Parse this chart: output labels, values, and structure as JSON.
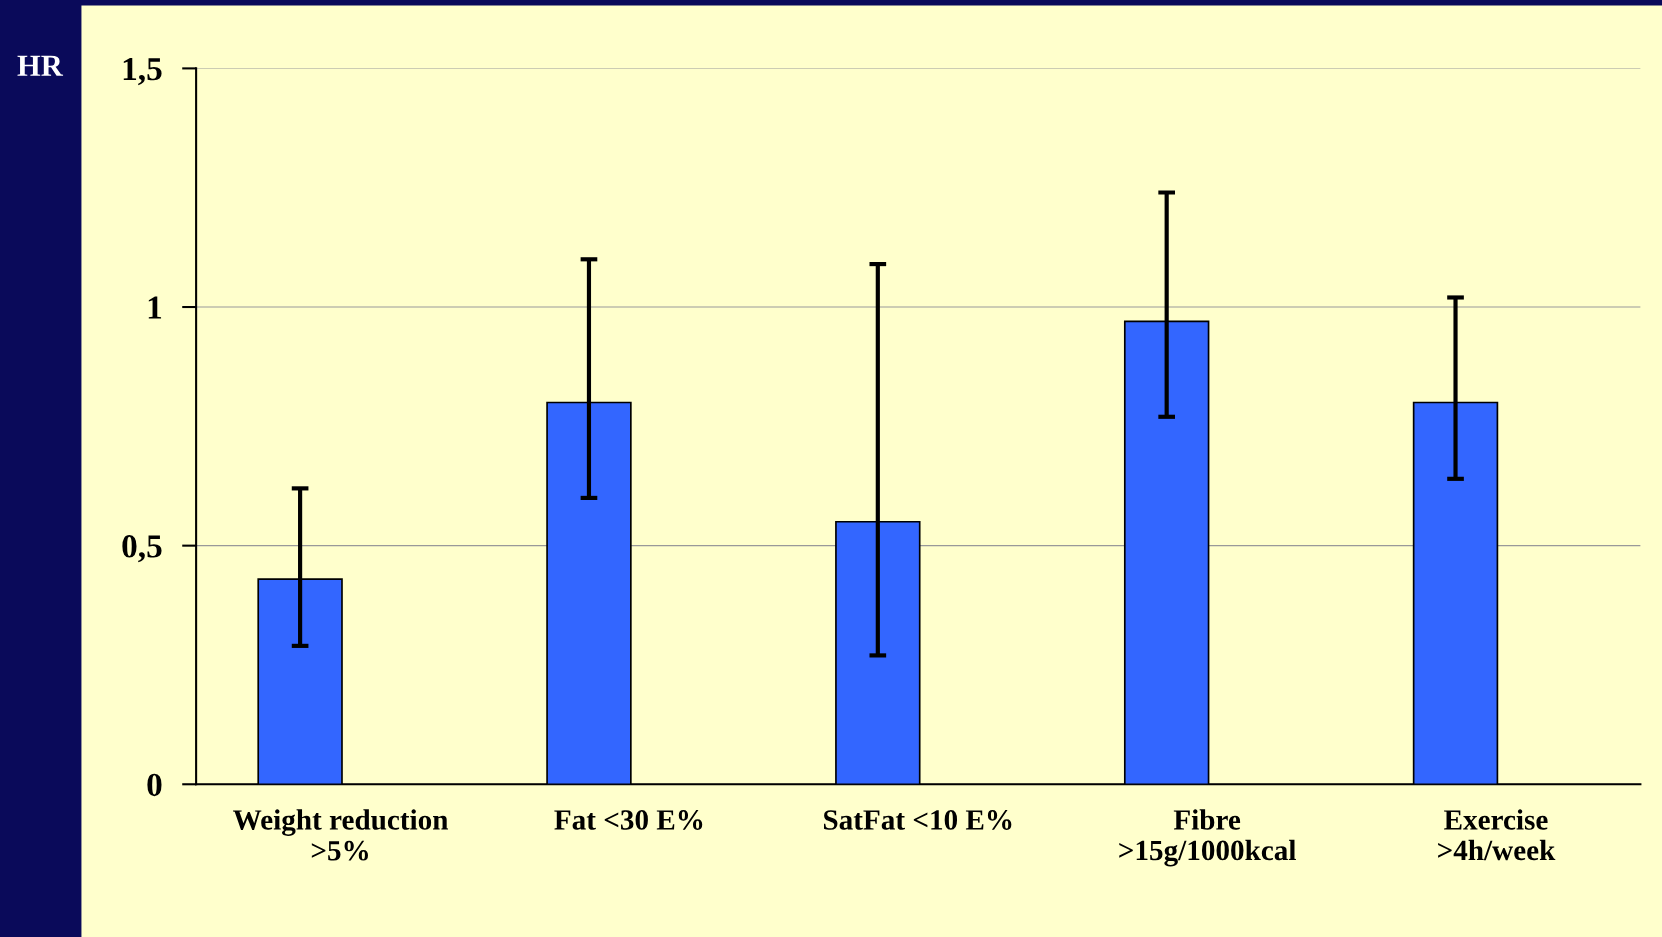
{
  "chart_data": {
    "type": "bar",
    "ylabel": "HR",
    "categories": [
      "Weight reduction\n>5%",
      "Fat <30 E%",
      "SatFat <10 E%",
      "Fibre\n>15g/1000kcal",
      "Exercise\n>4h/week"
    ],
    "values": [
      0.43,
      0.8,
      0.55,
      0.97,
      0.8
    ],
    "errors": [
      [
        0.29,
        0.62
      ],
      [
        0.6,
        1.1
      ],
      [
        0.27,
        1.09
      ],
      [
        0.77,
        1.24
      ],
      [
        0.64,
        1.02
      ]
    ],
    "color": "#3366ff",
    "ylim": [
      0,
      1.5
    ],
    "yticks": [
      0,
      {
        "value": 0.5,
        "label": "0,5"
      },
      1,
      {
        "value": 1.5,
        "label": "1,5"
      }
    ],
    "grid": "y"
  }
}
